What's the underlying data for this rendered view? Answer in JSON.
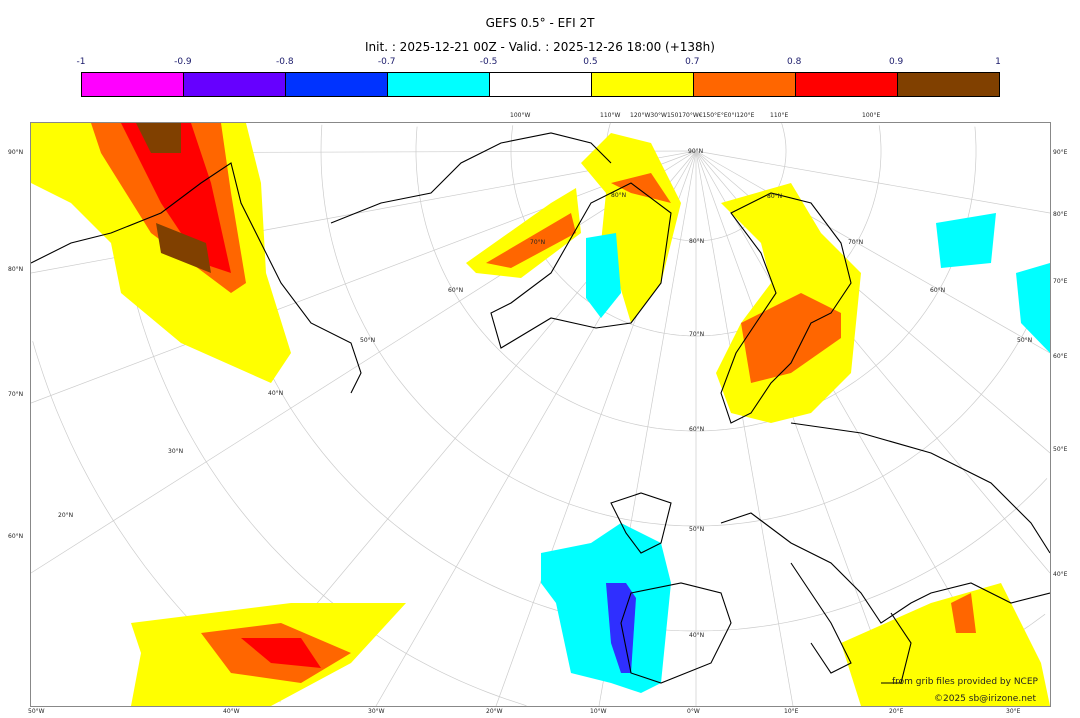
{
  "title": "GEFS 0.5° - EFI 2T",
  "subtitle": "Init. : 2025-12-21 00Z - Valid. : 2025-12-26 18:00 (+138h)",
  "colorbar": {
    "labels": [
      "-1",
      "-0.9",
      "-0.8",
      "-0.7",
      "-0.5",
      "0.5",
      "0.7",
      "0.8",
      "0.9",
      "1"
    ],
    "colors": [
      "#ff00ff",
      "#6600ff",
      "#0033ff",
      "#00ffff",
      "#ffffff",
      "#ffff00",
      "#ff6600",
      "#ff0000",
      "#804000"
    ]
  },
  "map": {
    "left_lat": [
      "90°N",
      "80°N",
      "70°N",
      "60°N"
    ],
    "right_lon": [
      "90°E",
      "80°E",
      "70°E",
      "60°E",
      "50°E",
      "40°E"
    ],
    "bottom_lon": [
      "50°W",
      "40°W",
      "30°W",
      "20°W",
      "10°W",
      "0°W",
      "10°E",
      "20°E",
      "30°E"
    ],
    "top_lon": [
      "100°W",
      "110°W",
      "120°W30°W150170°W€150°E°E0°I120°E",
      "110°E",
      "100°E"
    ],
    "inner_lat": [
      "90°N",
      "80°N",
      "70°N",
      "60°N",
      "50°N",
      "40°N",
      "80°N",
      "70°N",
      "60°N",
      "50°N",
      "40°N",
      "30°N",
      "20°N",
      "80°N",
      "70°N",
      "60°N",
      "50°N"
    ]
  },
  "credits": {
    "line1": "from grib files provided by NCEP",
    "line2": "©2025 sb@irizone.net"
  }
}
